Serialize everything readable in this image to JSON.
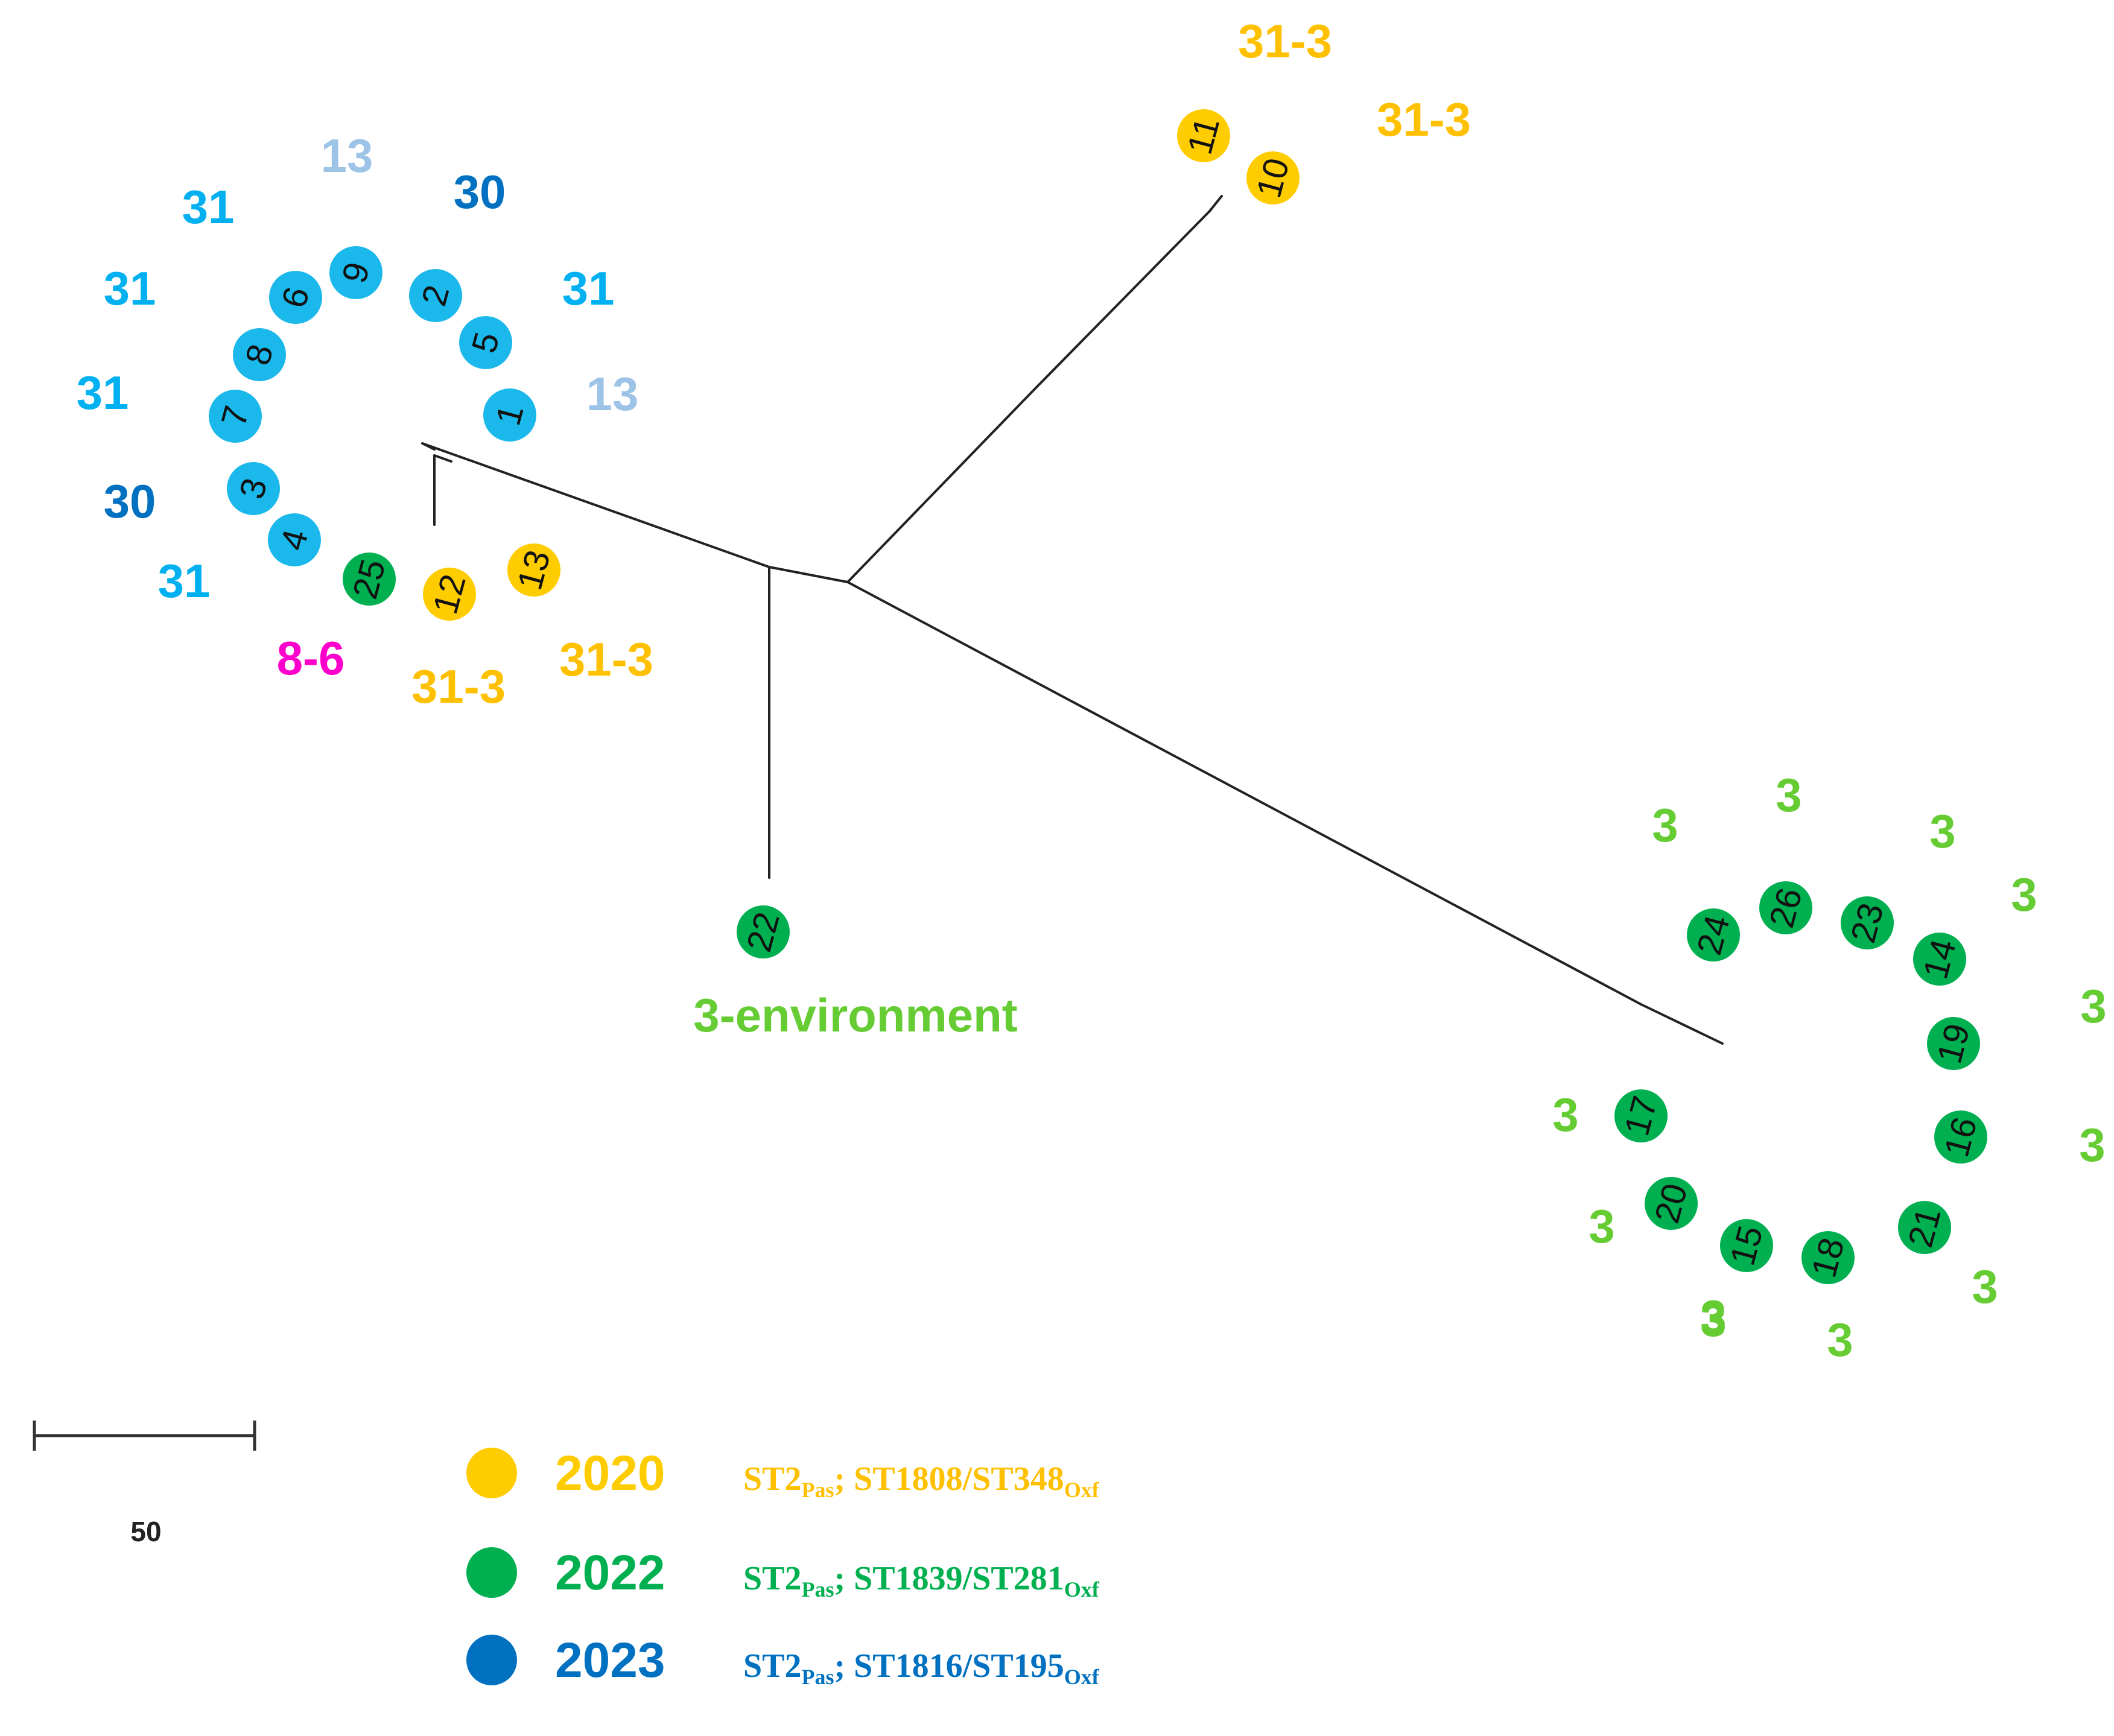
{
  "colors": {
    "2020": "#FFCC00",
    "2022": "#00B050",
    "2023": "#0070C0",
    "node_2023": "#1BB8EB",
    "label_31": "#00B0F0",
    "label_30": "#0070C0",
    "label_13": "#9DC3E6",
    "label_31_3": "#FFC000",
    "label_8_6": "#FF00CC",
    "label_3": "#66CC33"
  },
  "nodes": [
    {
      "id": "1",
      "year": "2023"
    },
    {
      "id": "2",
      "year": "2023"
    },
    {
      "id": "3",
      "year": "2023"
    },
    {
      "id": "4",
      "year": "2023"
    },
    {
      "id": "5",
      "year": "2023"
    },
    {
      "id": "6",
      "year": "2023"
    },
    {
      "id": "7",
      "year": "2023"
    },
    {
      "id": "8",
      "year": "2023"
    },
    {
      "id": "9",
      "year": "2023"
    },
    {
      "id": "10",
      "year": "2020"
    },
    {
      "id": "11",
      "year": "2020"
    },
    {
      "id": "12",
      "year": "2020"
    },
    {
      "id": "13",
      "year": "2020"
    },
    {
      "id": "14",
      "year": "2022"
    },
    {
      "id": "15",
      "year": "2022"
    },
    {
      "id": "16",
      "year": "2022"
    },
    {
      "id": "17",
      "year": "2022"
    },
    {
      "id": "18",
      "year": "2022"
    },
    {
      "id": "19",
      "year": "2022"
    },
    {
      "id": "20",
      "year": "2022"
    },
    {
      "id": "21",
      "year": "2022"
    },
    {
      "id": "22",
      "year": "2022"
    },
    {
      "id": "23",
      "year": "2022"
    },
    {
      "id": "24",
      "year": "2022"
    },
    {
      "id": "25",
      "year": "2022"
    },
    {
      "id": "26",
      "year": "2022"
    }
  ],
  "labels": [
    {
      "text": "13",
      "color": "label_13"
    },
    {
      "text": "30",
      "color": "label_30"
    },
    {
      "text": "31",
      "color": "label_31"
    },
    {
      "text": "31",
      "color": "label_31"
    },
    {
      "text": "31",
      "color": "label_31"
    },
    {
      "text": "13",
      "color": "label_13"
    },
    {
      "text": "31",
      "color": "label_31"
    },
    {
      "text": "30",
      "color": "label_30"
    },
    {
      "text": "31",
      "color": "label_31"
    },
    {
      "text": "8-6",
      "color": "label_8_6"
    },
    {
      "text": "31-3",
      "color": "label_31_3"
    },
    {
      "text": "31-3",
      "color": "label_31_3"
    },
    {
      "text": "31-3",
      "color": "label_31_3"
    },
    {
      "text": "31-3",
      "color": "label_31_3"
    },
    {
      "text": "3-environment",
      "color": "label_3"
    },
    {
      "text": "3",
      "color": "label_3"
    },
    {
      "text": "3",
      "color": "label_3"
    },
    {
      "text": "3",
      "color": "label_3"
    },
    {
      "text": "3",
      "color": "label_3"
    },
    {
      "text": "3",
      "color": "label_3"
    },
    {
      "text": "3",
      "color": "label_3"
    },
    {
      "text": "3",
      "color": "label_3"
    },
    {
      "text": "3",
      "color": "label_3"
    },
    {
      "text": "3",
      "color": "label_3"
    },
    {
      "text": "3",
      "color": "label_3"
    },
    {
      "text": "3",
      "color": "label_3"
    },
    {
      "text": "3",
      "color": "label_3"
    }
  ],
  "scale_bar": {
    "label": "50"
  },
  "legend": [
    {
      "year": "2020",
      "st_main": "ST2",
      "st_sub": "Pas",
      "st_rest": "; ST1808/ST348",
      "st_sub2": "Oxf",
      "text_color": "#FFC000"
    },
    {
      "year": "2022",
      "st_main": "ST2",
      "st_sub": "Pas",
      "st_rest": "; ST1839/ST281",
      "st_sub2": "Oxf",
      "text_color": "#00B050"
    },
    {
      "year": "2023",
      "st_main": "ST2",
      "st_sub": "Pas",
      "st_rest": "; ST1816/ST195",
      "st_sub2": "Oxf",
      "text_color": "#0070C0"
    }
  ]
}
